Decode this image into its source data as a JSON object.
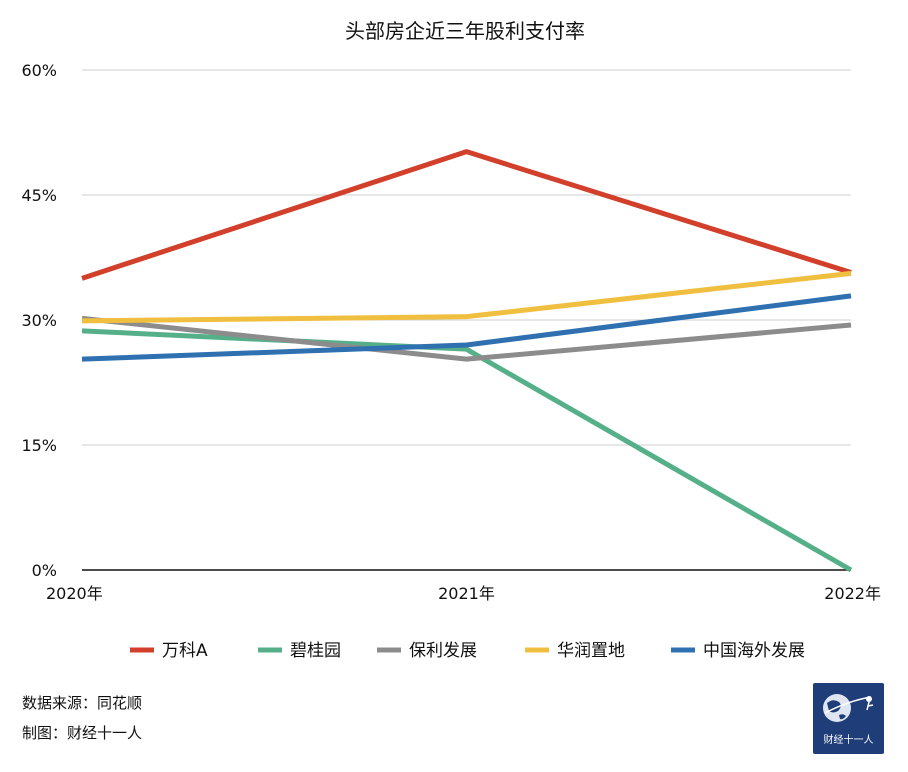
{
  "chart_data": {
    "type": "line",
    "title": "头部房企近三年股利支付率",
    "categories": [
      "2020年",
      "2021年",
      "2022年"
    ],
    "ylim": [
      0,
      60
    ],
    "yticks": [
      0,
      15,
      30,
      45,
      60
    ],
    "ytick_labels": [
      "0%",
      "15%",
      "30%",
      "45%",
      "60%"
    ],
    "grid": true,
    "legend_position": "bottom",
    "series": [
      {
        "name": "万科A",
        "color": "#d2402c",
        "values": [
          35.0,
          50.2,
          35.7
        ]
      },
      {
        "name": "碧桂园",
        "color": "#55b08a",
        "values": [
          28.7,
          26.5,
          0.0
        ]
      },
      {
        "name": "保利发展",
        "color": "#8c8c8c",
        "values": [
          30.2,
          25.3,
          29.4
        ]
      },
      {
        "name": "华润置地",
        "color": "#f0bf3f",
        "values": [
          29.9,
          30.4,
          35.6
        ]
      },
      {
        "name": "中国海外发展",
        "color": "#2f70b0",
        "values": [
          25.3,
          27.0,
          32.9
        ]
      }
    ]
  },
  "footer": {
    "source": "数据来源：同花顺",
    "maker": "制图：财经十一人"
  },
  "logo": {
    "text": "财经十一人",
    "icon": "globe-icon"
  }
}
